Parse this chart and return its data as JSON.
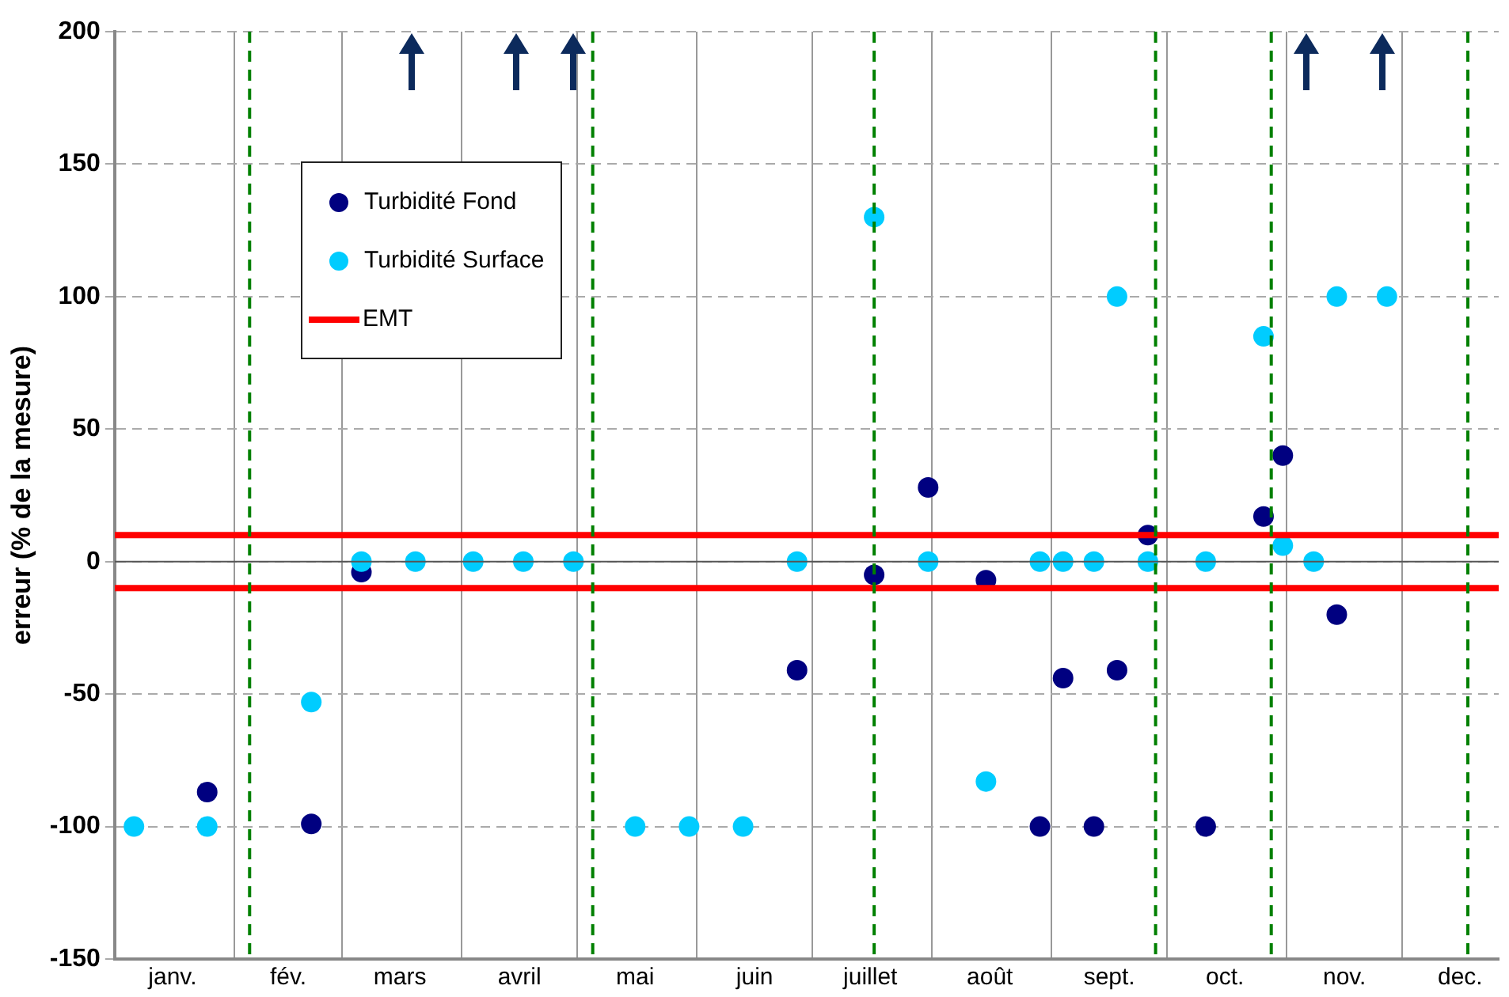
{
  "chart_data": {
    "type": "scatter",
    "ylabel": "erreur (% de la mesure)",
    "xlim": [
      "--01-01",
      "--12-26"
    ],
    "xticks": [
      {
        "value": "--01-01",
        "label": null
      },
      {
        "value": "--01-16",
        "label": "janv."
      },
      {
        "value": "--02-01",
        "label": null
      },
      {
        "value": "--02-15",
        "label": "fév."
      },
      {
        "value": "--03-01",
        "label": null
      },
      {
        "value": "--03-16",
        "label": "mars"
      },
      {
        "value": "--04-01",
        "label": null
      },
      {
        "value": "--04-16",
        "label": "avril"
      },
      {
        "value": "--05-01",
        "label": null
      },
      {
        "value": "--05-16",
        "label": "mai"
      },
      {
        "value": "--06-01",
        "label": null
      },
      {
        "value": "--06-16",
        "label": "juin"
      },
      {
        "value": "--07-01",
        "label": null
      },
      {
        "value": "--07-16",
        "label": "juillet"
      },
      {
        "value": "--08-01",
        "label": null
      },
      {
        "value": "--08-16",
        "label": "août"
      },
      {
        "value": "--09-01",
        "label": null
      },
      {
        "value": "--09-16",
        "label": "sept."
      },
      {
        "value": "--10-01",
        "label": null
      },
      {
        "value": "--10-16",
        "label": "oct."
      },
      {
        "value": "--11-01",
        "label": null
      },
      {
        "value": "--11-16",
        "label": "nov."
      },
      {
        "value": "--12-01",
        "label": null
      },
      {
        "value": "--12-16",
        "label": "dec."
      }
    ],
    "ylim": [
      -150,
      200
    ],
    "yticks": [
      -150,
      -100,
      -50,
      0,
      50,
      100,
      150,
      200
    ],
    "grid": true,
    "legend": "top left",
    "marker": "circle",
    "series": [
      {
        "name": "Turbidité Fond",
        "color": "#000080",
        "x": [
          "--01-25",
          "--02-21",
          "--03-06",
          "--06-27",
          "--07-17",
          "--07-31",
          "--08-15",
          "--08-29",
          "--09-04",
          "--09-12",
          "--09-18",
          "--09-26",
          "--10-11",
          "--10-26",
          "--10-31",
          "--11-14"
        ],
        "values": [
          -87,
          -99,
          -4,
          -41,
          -5,
          28,
          -7,
          -100,
          -44,
          -100,
          -41,
          10,
          -100,
          17,
          40,
          -20
        ]
      },
      {
        "name": "Turbidité Surface",
        "color": "#00ccff",
        "x": [
          "--01-06",
          "--01-25",
          "--02-21",
          "--03-06",
          "--03-20",
          "--04-04",
          "--04-17",
          "--04-30",
          "--05-16",
          "--05-30",
          "--06-13",
          "--06-27",
          "--07-17",
          "--07-31",
          "--08-15",
          "--08-29",
          "--09-04",
          "--09-12",
          "--09-18",
          "--09-26",
          "--10-11",
          "--10-26",
          "--10-31",
          "--11-08",
          "--11-14",
          "--11-27"
        ],
        "values": [
          -100,
          -100,
          -53,
          0,
          0,
          0,
          0,
          0,
          -100,
          -100,
          -100,
          0,
          130,
          0,
          -83,
          0,
          0,
          0,
          100,
          0,
          0,
          85,
          6,
          0,
          100,
          100
        ]
      }
    ],
    "ref_lines": [
      {
        "axis": "y",
        "value": 10,
        "label": "EMT",
        "color": "#ff0000",
        "line_style": "solid"
      },
      {
        "axis": "y",
        "value": -10,
        "color": "#ff0000",
        "line_style": "solid"
      },
      {
        "axis": "y",
        "value": 0,
        "color": "#555555",
        "line_style": "solid"
      },
      {
        "axis": "x",
        "value": "--02-05",
        "color": "#008000",
        "line_style": "dashed"
      },
      {
        "axis": "x",
        "value": "--05-05",
        "color": "#008000",
        "line_style": "dashed"
      },
      {
        "axis": "x",
        "value": "--07-17",
        "color": "#008000",
        "line_style": "dashed"
      },
      {
        "axis": "x",
        "value": "--09-28",
        "color": "#008000",
        "line_style": "dashed"
      },
      {
        "axis": "x",
        "value": "--10-28",
        "color": "#008000",
        "line_style": "dashed"
      },
      {
        "axis": "x",
        "value": "--12-18",
        "color": "#008000",
        "line_style": "dashed"
      }
    ]
  }
}
